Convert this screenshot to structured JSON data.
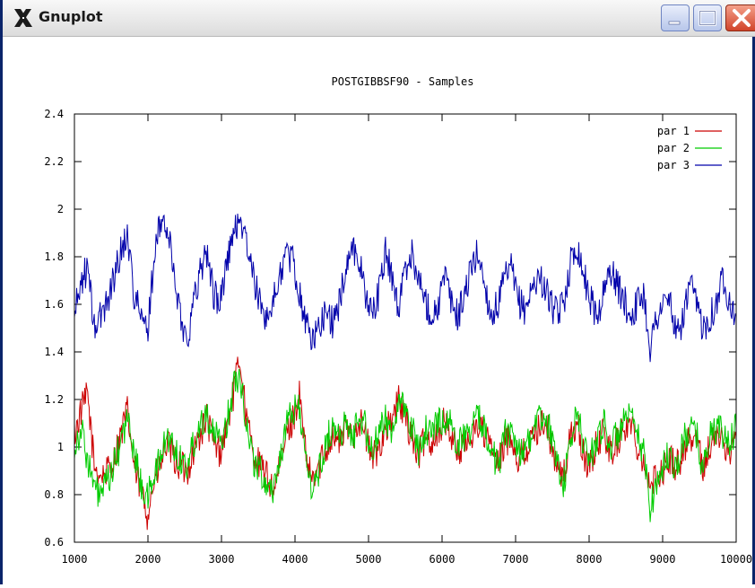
{
  "window": {
    "title": "Gnuplot",
    "icon": "x-logo-icon",
    "controls": [
      "minimize-icon",
      "maximize-icon",
      "close-icon"
    ]
  },
  "chart_data": {
    "type": "line",
    "title": "POSTGIBBSF90 - Samples",
    "xlabel": "",
    "ylabel": "",
    "xlim": [
      1000,
      10000
    ],
    "ylim": [
      0.6,
      2.4
    ],
    "x_ticks": [
      1000,
      2000,
      3000,
      4000,
      5000,
      6000,
      7000,
      8000,
      9000,
      10000
    ],
    "y_ticks": [
      "0.6",
      "0.8",
      "1",
      "1.2",
      "1.4",
      "1.6",
      "1.8",
      "2",
      "2.2",
      "2.4"
    ],
    "grid": false,
    "legend_position": "top-right",
    "x_step": 225,
    "series": [
      {
        "name": "par   1",
        "color": "#cc0000",
        "values": [
          1.05,
          1.15,
          1.22,
          0.92,
          0.88,
          0.9,
          0.95,
          1.05,
          1.15,
          0.92,
          0.82,
          0.72,
          0.85,
          0.92,
          1.02,
          0.95,
          0.92,
          0.9,
          0.98,
          1.05,
          1.12,
          1.02,
          0.98,
          1.08,
          1.22,
          1.38,
          1.12,
          0.98,
          0.92,
          0.88,
          0.82,
          0.9,
          1.05,
          1.12,
          1.22,
          0.95,
          0.85,
          0.92,
          1.0,
          1.05,
          1.02,
          1.08,
          1.05,
          1.12,
          1.05,
          0.95,
          1.0,
          1.08,
          1.1,
          1.2,
          1.12,
          1.05,
          0.95,
          1.05,
          1.02,
          1.08,
          1.1,
          1.05,
          0.98,
          1.0,
          1.05,
          1.1,
          1.05,
          1.0,
          0.92,
          1.02,
          1.05,
          0.95,
          0.98,
          1.02,
          1.08,
          1.12,
          1.02,
          0.9,
          0.88,
          1.05,
          1.1,
          0.95,
          0.92,
          1.02,
          1.06,
          0.98,
          1.02,
          1.08,
          1.1,
          1.02,
          0.95,
          0.82,
          0.88,
          0.9,
          0.95,
          0.92,
          0.98,
          1.05,
          1.02,
          0.92,
          1.0,
          1.05,
          1.02,
          0.98,
          1.05
        ]
      },
      {
        "name": "par   2",
        "color": "#00cc00",
        "values": [
          1.0,
          1.08,
          0.95,
          0.82,
          0.8,
          0.85,
          0.92,
          1.02,
          1.12,
          0.98,
          0.85,
          0.78,
          0.88,
          0.95,
          1.05,
          1.0,
          0.95,
          0.92,
          1.02,
          1.1,
          1.15,
          1.05,
          1.02,
          1.1,
          1.25,
          1.32,
          1.1,
          0.95,
          0.9,
          0.85,
          0.82,
          0.95,
          1.08,
          1.15,
          1.18,
          0.92,
          0.82,
          0.9,
          1.02,
          1.08,
          1.05,
          1.1,
          1.02,
          1.15,
          1.08,
          0.98,
          1.05,
          1.12,
          1.08,
          1.18,
          1.15,
          1.08,
          0.98,
          1.08,
          1.05,
          1.12,
          1.12,
          1.08,
          1.02,
          1.05,
          1.08,
          1.12,
          1.08,
          1.02,
          0.9,
          1.05,
          1.08,
          0.98,
          1.0,
          1.05,
          1.1,
          1.15,
          1.05,
          0.92,
          0.85,
          1.02,
          1.15,
          1.0,
          0.95,
          1.05,
          1.1,
          1.0,
          1.05,
          1.1,
          1.12,
          1.05,
          0.98,
          0.75,
          0.85,
          0.92,
          0.98,
          0.9,
          1.02,
          1.08,
          1.05,
          0.9,
          1.05,
          1.08,
          1.05,
          1.02,
          1.08
        ]
      },
      {
        "name": "par   3",
        "color": "#0000aa",
        "values": [
          1.55,
          1.7,
          1.75,
          1.5,
          1.55,
          1.62,
          1.72,
          1.82,
          1.9,
          1.65,
          1.55,
          1.48,
          1.78,
          1.95,
          1.92,
          1.75,
          1.55,
          1.45,
          1.6,
          1.75,
          1.82,
          1.65,
          1.6,
          1.78,
          1.88,
          1.98,
          1.85,
          1.72,
          1.6,
          1.55,
          1.6,
          1.72,
          1.82,
          1.78,
          1.65,
          1.52,
          1.45,
          1.5,
          1.58,
          1.52,
          1.6,
          1.75,
          1.85,
          1.78,
          1.65,
          1.55,
          1.65,
          1.82,
          1.72,
          1.58,
          1.75,
          1.82,
          1.7,
          1.62,
          1.55,
          1.6,
          1.72,
          1.6,
          1.55,
          1.65,
          1.75,
          1.82,
          1.68,
          1.55,
          1.6,
          1.7,
          1.75,
          1.62,
          1.58,
          1.65,
          1.72,
          1.68,
          1.6,
          1.55,
          1.62,
          1.78,
          1.85,
          1.72,
          1.62,
          1.55,
          1.65,
          1.75,
          1.68,
          1.62,
          1.55,
          1.6,
          1.65,
          1.42,
          1.55,
          1.6,
          1.62,
          1.45,
          1.55,
          1.68,
          1.6,
          1.5,
          1.55,
          1.6,
          1.72,
          1.62,
          1.55
        ]
      }
    ]
  }
}
